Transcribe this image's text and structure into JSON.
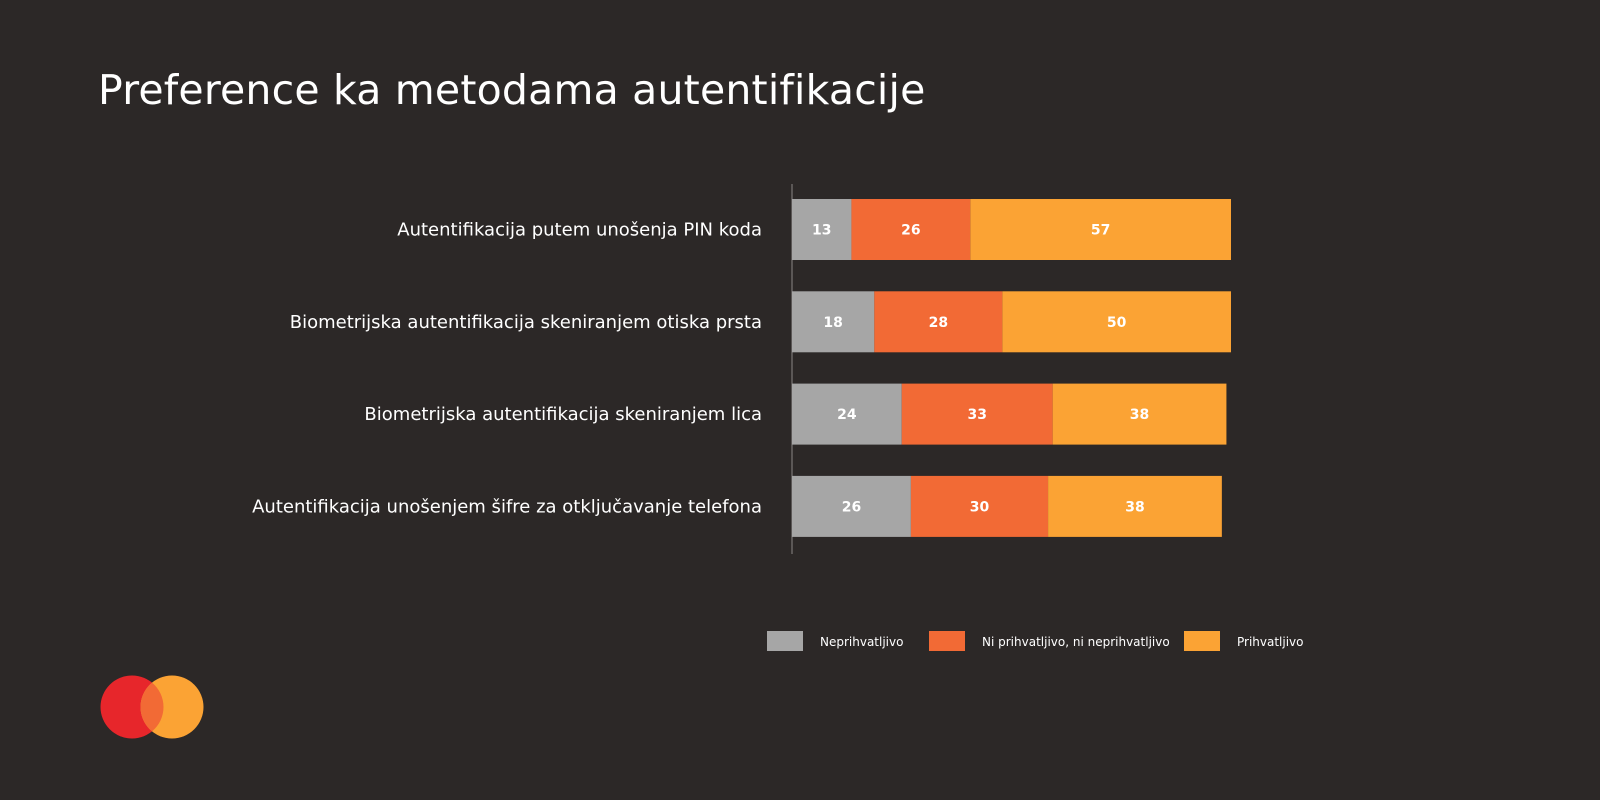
{
  "title": "Preference ka metodama autentifikacije",
  "chart_data": {
    "type": "bar",
    "orientation": "horizontal",
    "stacked": true,
    "categories": [
      "Autentifikacija putem unošenja PIN koda",
      "Biometrijska autentifikacija skeniranjem otiska prsta",
      "Biometrijska autentifikacija skeniranjem lica",
      "Autentifikacija unošenjem šifre za otključavanje telefona"
    ],
    "series": [
      {
        "name": "Neprihvatljivo",
        "color": "#a6a6a6",
        "values": [
          13,
          18,
          24,
          26
        ]
      },
      {
        "name": "Ni prihvatljivo, ni neprihvatljivo",
        "color": "#f26a35",
        "values": [
          26,
          28,
          33,
          30
        ]
      },
      {
        "name": "Prihvatljivo",
        "color": "#fba334",
        "values": [
          57,
          50,
          38,
          38
        ]
      }
    ],
    "xlim": [
      0,
      96
    ],
    "grid": false,
    "legend_position": "bottom"
  },
  "logo": {
    "name": "mastercard-logo",
    "colors": [
      "#e7262b",
      "#fba334",
      "#f26a35"
    ]
  }
}
